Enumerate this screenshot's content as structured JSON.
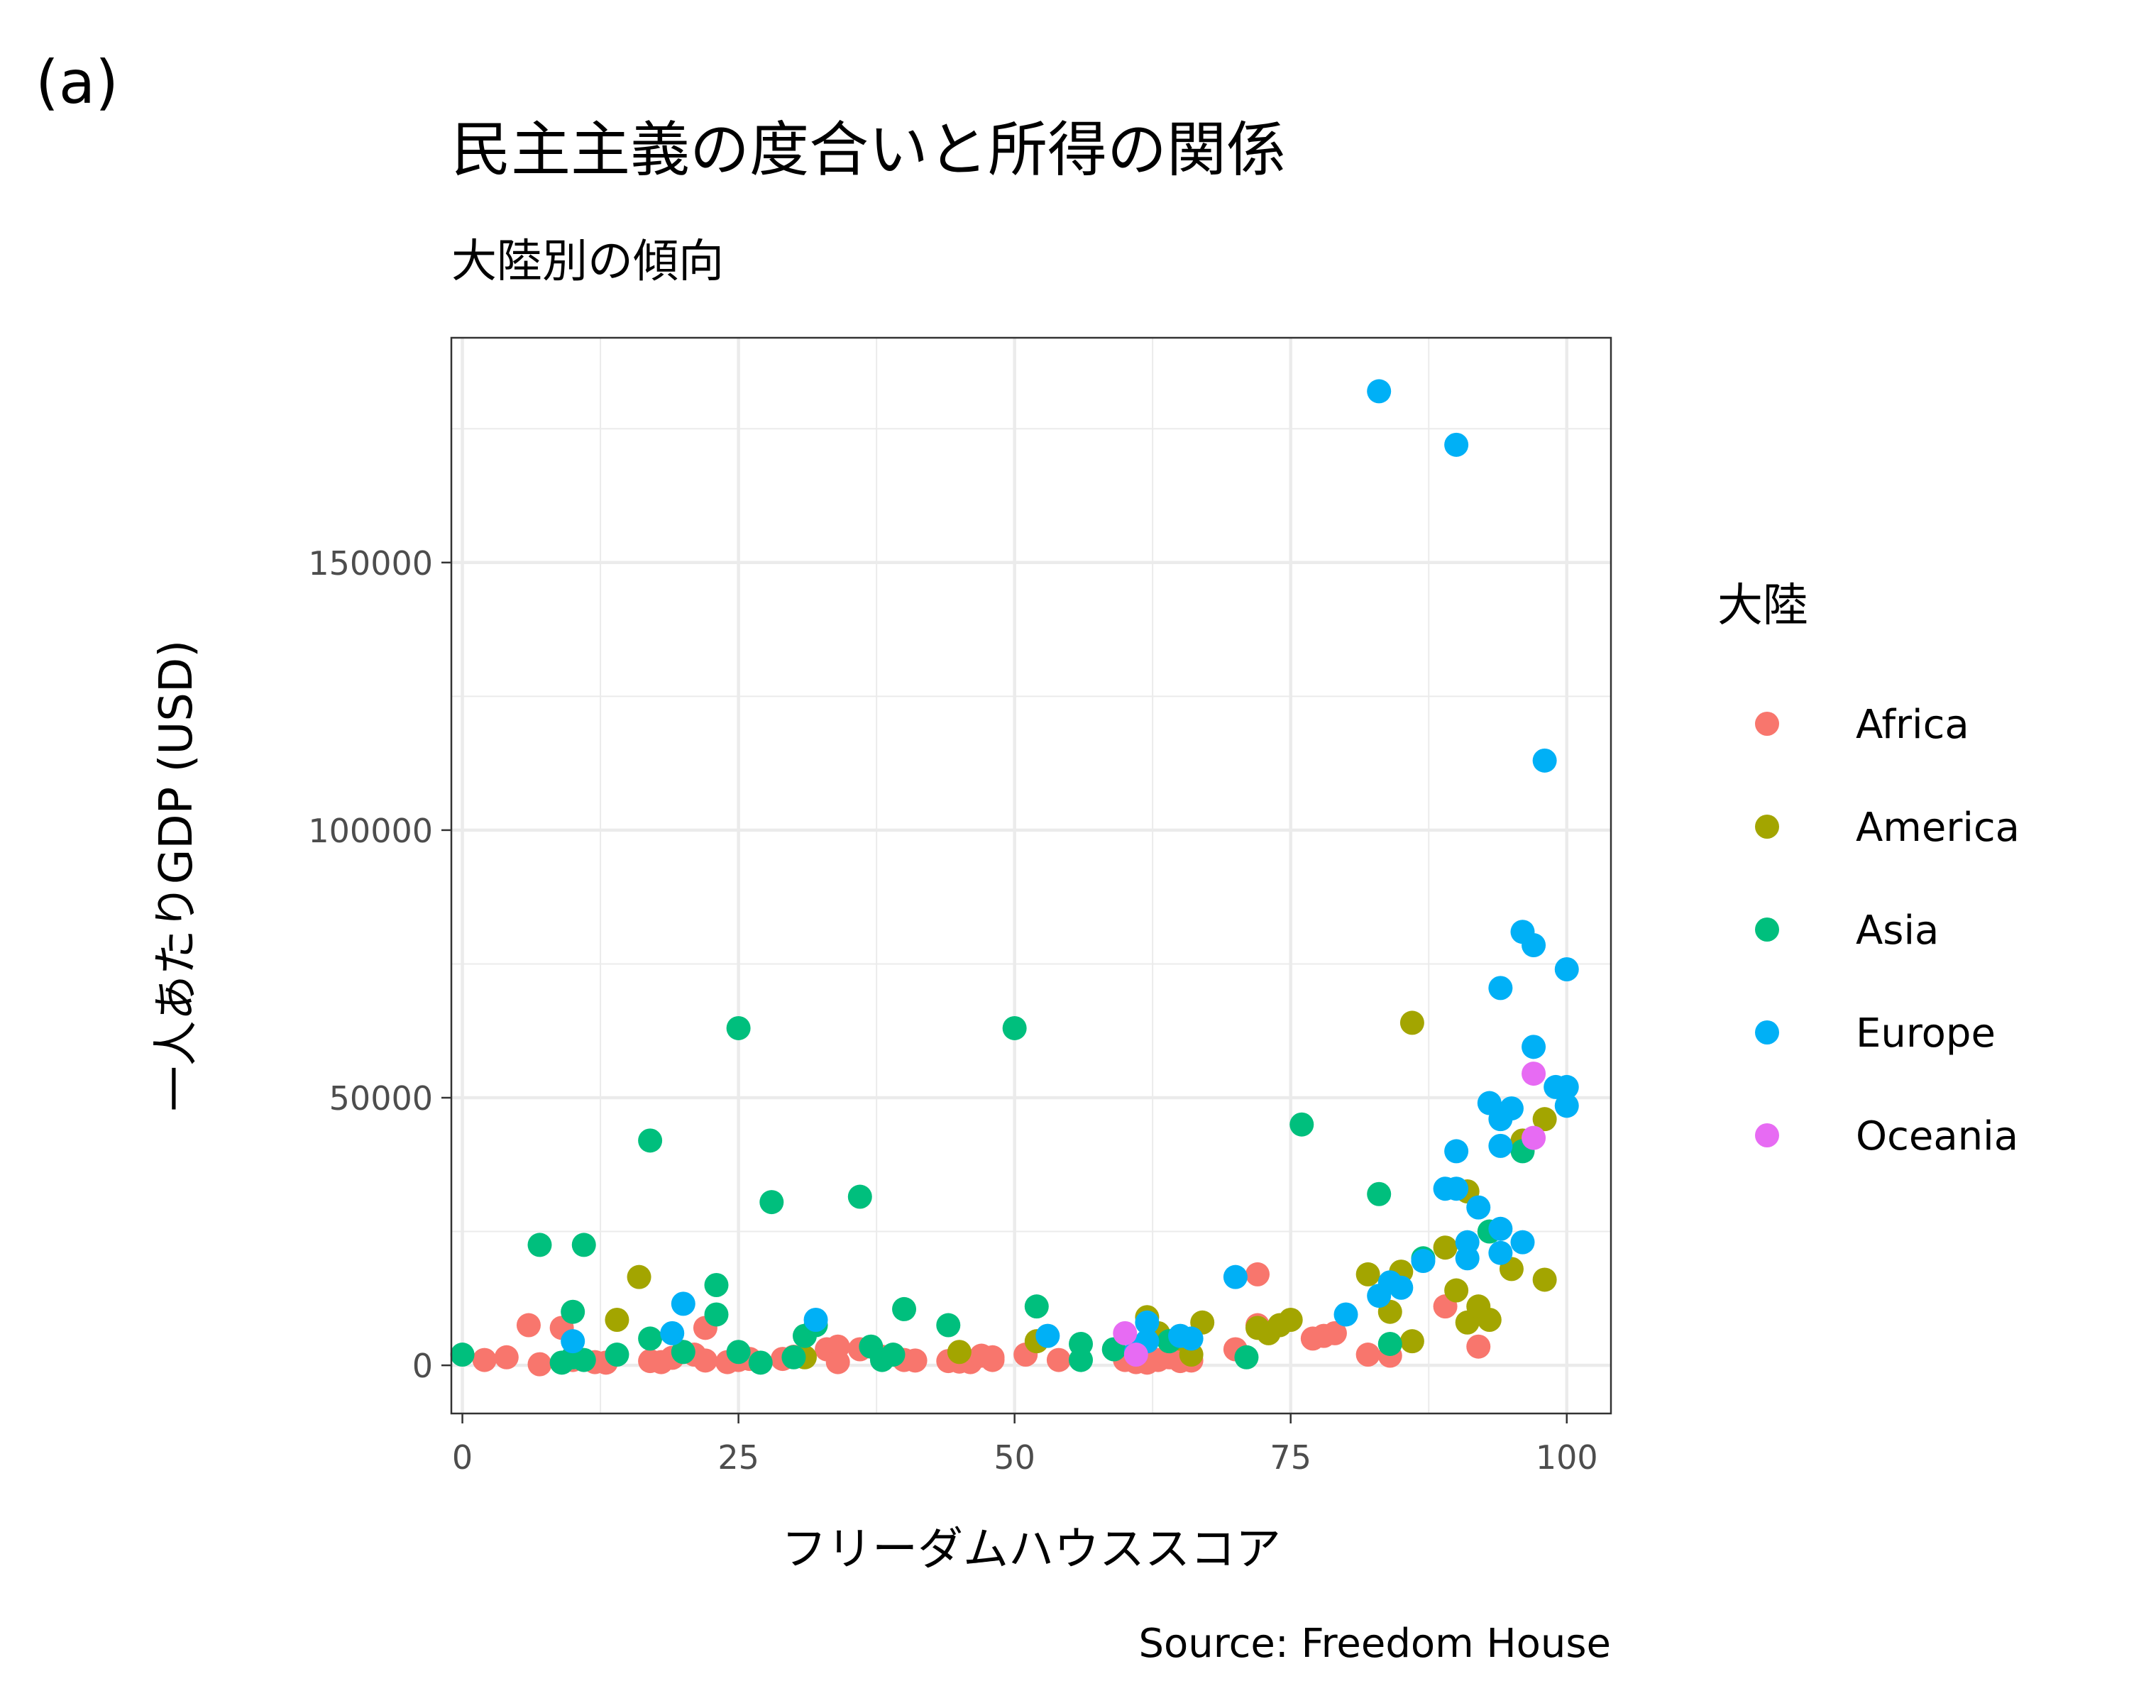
{
  "panel_label": "(a)",
  "colors": {
    "Africa": "#F8766D",
    "America": "#A3A500",
    "Asia": "#00BF7D",
    "Europe": "#00B0F6",
    "Oceania": "#E76BF3"
  },
  "chart_data": {
    "type": "scatter",
    "title": "民主主義の度合いと所得の関係",
    "subtitle": "大陸別の傾向",
    "xlabel": "フリーダムハウススコア",
    "ylabel": "一人あたりGDP (USD)",
    "caption": "Source: Freedom House",
    "xlim": [
      -1,
      104
    ],
    "ylim": [
      -9000,
      192000
    ],
    "xticks": [
      0,
      25,
      50,
      75,
      100
    ],
    "xtick_labels": [
      "0",
      "25",
      "50",
      "75",
      "100"
    ],
    "yticks": [
      0,
      50000,
      100000,
      150000
    ],
    "ytick_labels": [
      "0",
      "50000",
      "100000",
      "150000"
    ],
    "grid": true,
    "legend_title": "大陸",
    "legend_position": "right",
    "series": [
      {
        "name": "Africa",
        "points": [
          [
            2,
            1000
          ],
          [
            4,
            1500
          ],
          [
            6,
            7500
          ],
          [
            7,
            200
          ],
          [
            9,
            7000
          ],
          [
            10,
            1000
          ],
          [
            12,
            600
          ],
          [
            13,
            500
          ],
          [
            17,
            800
          ],
          [
            18,
            600
          ],
          [
            19,
            1400
          ],
          [
            20,
            2500
          ],
          [
            21,
            2000
          ],
          [
            22,
            7000
          ],
          [
            22,
            900
          ],
          [
            24,
            600
          ],
          [
            25,
            1000
          ],
          [
            26,
            1200
          ],
          [
            29,
            1200
          ],
          [
            30,
            1600
          ],
          [
            33,
            3000
          ],
          [
            34,
            3500
          ],
          [
            34,
            600
          ],
          [
            36,
            3000
          ],
          [
            38,
            1600
          ],
          [
            40,
            1000
          ],
          [
            41,
            900
          ],
          [
            44,
            800
          ],
          [
            45,
            700
          ],
          [
            46,
            600
          ],
          [
            47,
            1800
          ],
          [
            48,
            1000
          ],
          [
            48,
            1500
          ],
          [
            51,
            2000
          ],
          [
            54,
            1000
          ],
          [
            60,
            1000
          ],
          [
            61,
            600
          ],
          [
            62,
            500
          ],
          [
            63,
            1000
          ],
          [
            64,
            1500
          ],
          [
            65,
            800
          ],
          [
            66,
            900
          ],
          [
            70,
            3000
          ],
          [
            72,
            17000
          ],
          [
            72,
            7500
          ],
          [
            77,
            5000
          ],
          [
            78,
            5500
          ],
          [
            79,
            6000
          ],
          [
            82,
            2000
          ],
          [
            84,
            1800
          ],
          [
            89,
            11000
          ],
          [
            92,
            3500
          ]
        ]
      },
      {
        "name": "America",
        "points": [
          [
            14,
            8500
          ],
          [
            16,
            16500
          ],
          [
            31,
            1500
          ],
          [
            45,
            2500
          ],
          [
            52,
            4500
          ],
          [
            62,
            9000
          ],
          [
            63,
            6000
          ],
          [
            65,
            5000
          ],
          [
            66,
            2000
          ],
          [
            67,
            8000
          ],
          [
            72,
            7000
          ],
          [
            73,
            6000
          ],
          [
            74,
            7500
          ],
          [
            75,
            8500
          ],
          [
            82,
            17000
          ],
          [
            84,
            10000
          ],
          [
            85,
            17500
          ],
          [
            86,
            4500
          ],
          [
            86,
            64000
          ],
          [
            89,
            22000
          ],
          [
            90,
            14000
          ],
          [
            91,
            8000
          ],
          [
            91,
            32500
          ],
          [
            92,
            11000
          ],
          [
            93,
            8500
          ],
          [
            95,
            18000
          ],
          [
            96,
            42000
          ],
          [
            98,
            46000
          ],
          [
            98,
            16000
          ]
        ]
      },
      {
        "name": "Asia",
        "points": [
          [
            0,
            2000
          ],
          [
            7,
            22500
          ],
          [
            9,
            500
          ],
          [
            10,
            10000
          ],
          [
            10,
            1500
          ],
          [
            11,
            22500
          ],
          [
            11,
            1000
          ],
          [
            14,
            2000
          ],
          [
            17,
            42000
          ],
          [
            17,
            5000
          ],
          [
            20,
            2500
          ],
          [
            23,
            15000
          ],
          [
            23,
            9500
          ],
          [
            25,
            63000
          ],
          [
            25,
            2500
          ],
          [
            27,
            500
          ],
          [
            28,
            30500
          ],
          [
            30,
            1500
          ],
          [
            31,
            5500
          ],
          [
            32,
            7500
          ],
          [
            36,
            31500
          ],
          [
            37,
            3500
          ],
          [
            38,
            1000
          ],
          [
            39,
            2000
          ],
          [
            40,
            10500
          ],
          [
            44,
            7500
          ],
          [
            50,
            63000
          ],
          [
            52,
            11000
          ],
          [
            56,
            1000
          ],
          [
            56,
            4000
          ],
          [
            59,
            3000
          ],
          [
            64,
            4500
          ],
          [
            71,
            1500
          ],
          [
            76,
            45000
          ],
          [
            83,
            32000
          ],
          [
            84,
            4000
          ],
          [
            87,
            20000
          ],
          [
            93,
            25000
          ],
          [
            96,
            40000
          ]
        ]
      },
      {
        "name": "Europe",
        "points": [
          [
            10,
            4500
          ],
          [
            19,
            6000
          ],
          [
            20,
            11500
          ],
          [
            32,
            8500
          ],
          [
            53,
            5500
          ],
          [
            61,
            2500
          ],
          [
            62,
            4500
          ],
          [
            62,
            8000
          ],
          [
            65,
            5500
          ],
          [
            66,
            5000
          ],
          [
            70,
            16500
          ],
          [
            80,
            9500
          ],
          [
            83,
            182000
          ],
          [
            83,
            13000
          ],
          [
            84,
            15500
          ],
          [
            85,
            14500
          ],
          [
            87,
            19500
          ],
          [
            89,
            33000
          ],
          [
            90,
            40000
          ],
          [
            90,
            172000
          ],
          [
            90,
            33000
          ],
          [
            91,
            23000
          ],
          [
            91,
            20000
          ],
          [
            92,
            29500
          ],
          [
            93,
            49000
          ],
          [
            94,
            46000
          ],
          [
            94,
            41000
          ],
          [
            94,
            21000
          ],
          [
            94,
            70500
          ],
          [
            94,
            25500
          ],
          [
            95,
            48000
          ],
          [
            96,
            23000
          ],
          [
            96,
            81000
          ],
          [
            97,
            78500
          ],
          [
            97,
            59500
          ],
          [
            98,
            113000
          ],
          [
            99,
            52000
          ],
          [
            100,
            74000
          ],
          [
            100,
            52000
          ],
          [
            100,
            48500
          ]
        ]
      },
      {
        "name": "Oceania",
        "points": [
          [
            60,
            6000
          ],
          [
            61,
            2000
          ],
          [
            97,
            54500
          ],
          [
            97,
            42500
          ]
        ]
      }
    ]
  }
}
